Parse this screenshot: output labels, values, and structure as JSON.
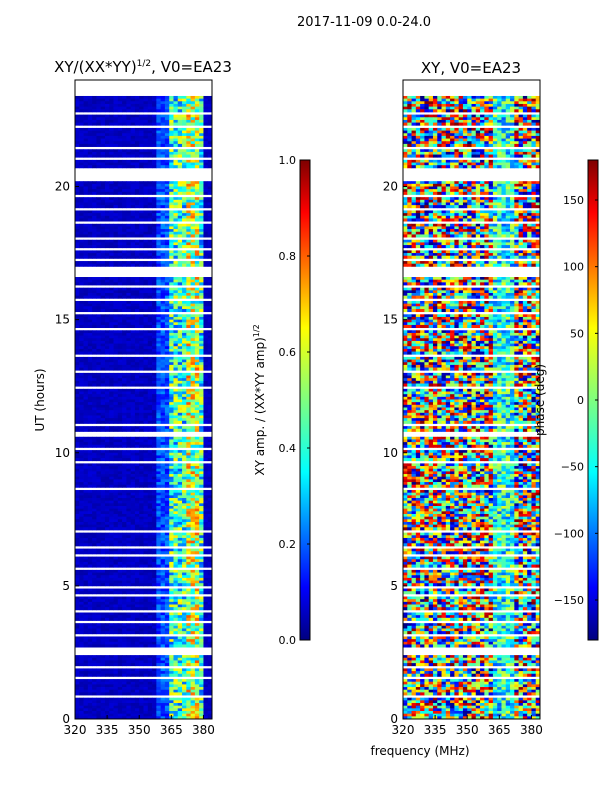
{
  "suptitle": "2017-11-09 0.0-24.0",
  "chart_data": [
    {
      "type": "heatmap",
      "title": "XY/(XX*YY)^1/2, V0=EA23",
      "xlabel": "",
      "ylabel": "UT (hours)",
      "xlim": [
        320,
        384
      ],
      "ylim": [
        0,
        24
      ],
      "xticks": [
        "320",
        "335",
        "350",
        "365",
        "380"
      ],
      "yticks": [
        "0",
        "5",
        "10",
        "15",
        "20"
      ],
      "colorbar": {
        "label": "XY amp. / (XX*YY amp)^1/2",
        "range": [
          0.0,
          1.0
        ],
        "ticks": [
          "0.0",
          "0.2",
          "0.4",
          "0.6",
          "0.8",
          "1.0"
        ]
      },
      "data_gaps_hours": [
        [
          23.4,
          24.0
        ],
        [
          22.7,
          22.8
        ],
        [
          22.2,
          22.3
        ],
        [
          21.4,
          21.5
        ],
        [
          21.0,
          21.1
        ],
        [
          20.2,
          20.7
        ],
        [
          19.6,
          19.7
        ],
        [
          19.1,
          19.2
        ],
        [
          18.6,
          18.7
        ],
        [
          18.0,
          18.1
        ],
        [
          17.6,
          17.7
        ],
        [
          17.2,
          17.3
        ],
        [
          16.6,
          17.0
        ],
        [
          16.2,
          16.3
        ],
        [
          15.7,
          15.8
        ],
        [
          15.2,
          15.3
        ],
        [
          14.6,
          14.7
        ],
        [
          13.6,
          13.7
        ],
        [
          13.0,
          13.1
        ],
        [
          12.4,
          12.5
        ],
        [
          11.0,
          11.1
        ],
        [
          10.6,
          10.8
        ],
        [
          10.1,
          10.2
        ],
        [
          9.6,
          9.7
        ],
        [
          8.6,
          8.7
        ],
        [
          7.0,
          7.1
        ],
        [
          6.4,
          6.5
        ],
        [
          6.1,
          6.2
        ],
        [
          5.6,
          5.7
        ],
        [
          4.9,
          5.0
        ],
        [
          4.6,
          4.7
        ],
        [
          4.0,
          4.1
        ],
        [
          3.6,
          3.7
        ],
        [
          3.1,
          3.2
        ],
        [
          2.4,
          2.7
        ],
        [
          1.9,
          2.0
        ],
        [
          1.5,
          1.6
        ],
        [
          0.8,
          0.9
        ]
      ]
    },
    {
      "type": "heatmap",
      "title": "XY, V0=EA23",
      "xlabel": "frequency (MHz)",
      "ylabel": "",
      "xlim": [
        320,
        384
      ],
      "ylim": [
        0,
        24
      ],
      "xticks": [
        "320",
        "335",
        "350",
        "365",
        "380"
      ],
      "yticks": [
        "0",
        "5",
        "10",
        "15",
        "20"
      ],
      "colorbar": {
        "label": "phase (deg)",
        "range": [
          -180,
          180
        ],
        "ticks": [
          "−150",
          "−100",
          "−50",
          "0",
          "50",
          "100",
          "150"
        ]
      }
    }
  ],
  "colors": {
    "jet": [
      "#00007f",
      "#0000ff",
      "#007fff",
      "#00ffff",
      "#7fff7f",
      "#ffff00",
      "#ff7f00",
      "#ff0000",
      "#7f0000"
    ]
  }
}
